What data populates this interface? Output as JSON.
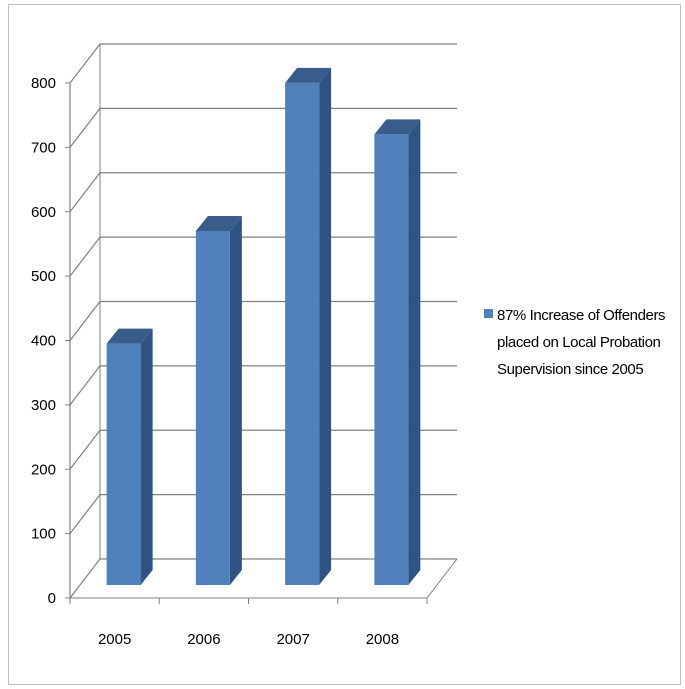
{
  "chart_data": {
    "type": "bar",
    "categories": [
      "2005",
      "2006",
      "2007",
      "2008"
    ],
    "series": [
      {
        "name": "87% Increase of Offenders placed on Local Probation Supervision since 2005",
        "values": [
          375,
          550,
          780,
          700
        ]
      }
    ],
    "ylim": [
      0,
      800
    ],
    "yticks": [
      0,
      100,
      200,
      300,
      400,
      500,
      600,
      700,
      800
    ],
    "grid": true,
    "legend_position": "right",
    "bar_color": "#4f81bd",
    "bar_side_color": "#2f5483",
    "bar_top_color": "#385d8a",
    "style": "3d-column"
  }
}
